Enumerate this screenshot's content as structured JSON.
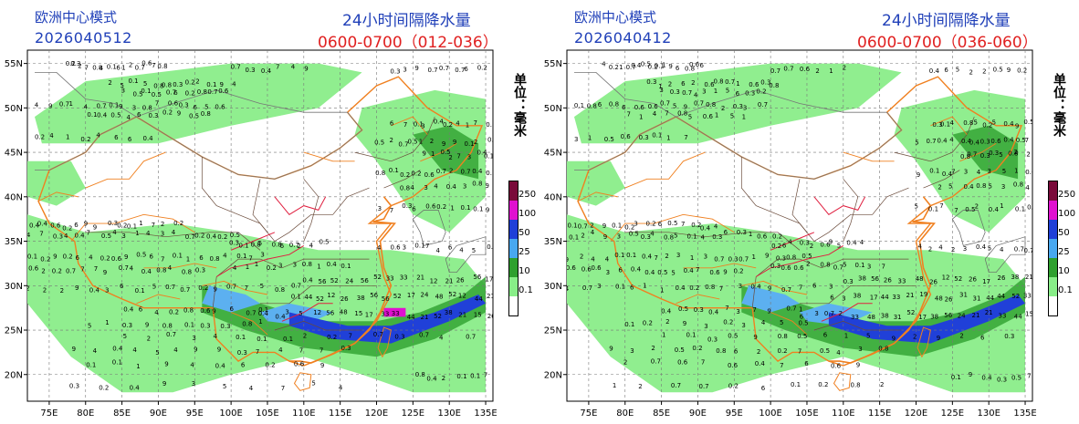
{
  "panels": [
    {
      "model": "欧洲中心模式",
      "init": "2026040512",
      "title": "24小时间隔降水量",
      "period": "0600-0700（012-036）",
      "unit_label": "单位：毫米"
    },
    {
      "model": "欧洲中心模式",
      "init": "2026040412",
      "title": "24小时间隔降水量",
      "period": "0600-0700（036-060）",
      "unit_label": "单位：毫米"
    }
  ],
  "axes": {
    "x_ticks": [
      "75E",
      "80E",
      "85E",
      "90E",
      "95E",
      "100E",
      "105E",
      "110E",
      "115E",
      "120E",
      "125E",
      "130E",
      "135E"
    ],
    "y_ticks": [
      "55N",
      "50N",
      "45N",
      "40N",
      "35N",
      "30N",
      "25N",
      "20N"
    ]
  },
  "legend": {
    "labels": [
      "250",
      "100",
      "50",
      "25",
      "10",
      "0.1"
    ],
    "colors": [
      "#7a0a3a",
      "#e010d0",
      "#1f3fd8",
      "#48a8f0",
      "#2ea02e",
      "#88ee88",
      "#ffffff"
    ]
  }
}
